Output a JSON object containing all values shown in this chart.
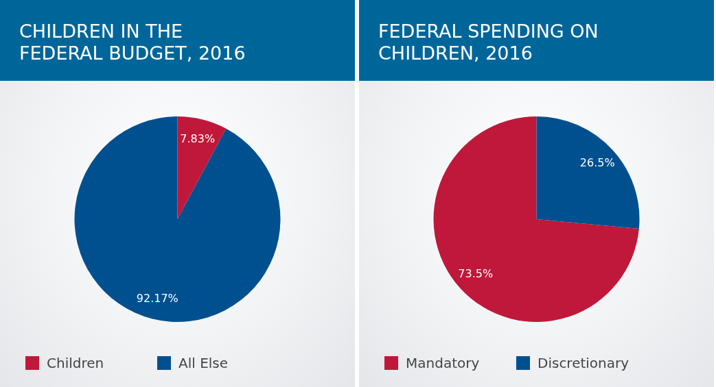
{
  "chart_data": [
    {
      "type": "pie",
      "title": "CHILDREN IN THE FEDERAL BUDGET, 2016",
      "categories": [
        "Children",
        "All Else"
      ],
      "values": [
        7.83,
        92.17
      ],
      "value_labels": [
        "7.83%",
        "92.17%"
      ],
      "colors": [
        "#c0183a",
        "#00508f"
      ],
      "legend": "bottom"
    },
    {
      "type": "pie",
      "title": "FEDERAL SPENDING ON CHILDREN, 2016",
      "categories": [
        "Mandatory",
        "Discretionary"
      ],
      "values": [
        73.5,
        26.5
      ],
      "value_labels": [
        "73.5%",
        "26.5%"
      ],
      "colors": [
        "#c0183a",
        "#00508f"
      ],
      "legend": "bottom"
    }
  ]
}
